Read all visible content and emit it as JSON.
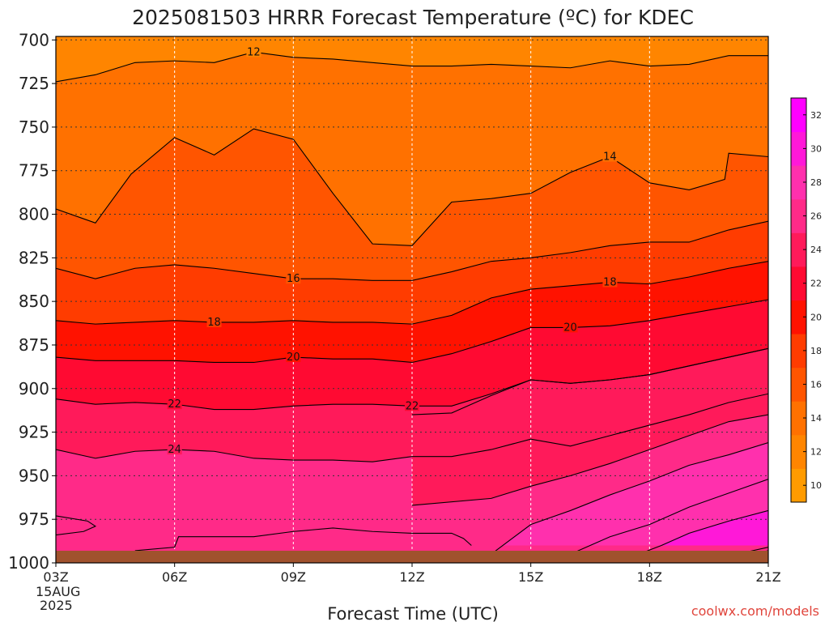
{
  "chart_data": {
    "type": "heatmap",
    "title": "2025081503 HRRR Forecast Temperature (ºC) for KDEC",
    "xlabel": "Forecast Time (UTC)",
    "ylabel": "",
    "x_ticks": [
      "03Z",
      "06Z",
      "09Z",
      "12Z",
      "15Z",
      "18Z",
      "21Z"
    ],
    "x_first_date": [
      "15AUG",
      "2025"
    ],
    "y_ticks": [
      "700",
      "725",
      "750",
      "775",
      "800",
      "825",
      "850",
      "875",
      "900",
      "925",
      "950",
      "975",
      "1000"
    ],
    "ylim": [
      1000,
      698
    ],
    "xlim_hours": [
      3,
      21
    ],
    "grid": true,
    "y_scale": "pressure (hPa), top = low pressure",
    "colorbar": {
      "ticks": [
        10,
        12,
        14,
        16,
        18,
        20,
        22,
        24,
        26,
        28,
        30,
        32
      ],
      "range": [
        9,
        33
      ],
      "colors": [
        "#ff9b00",
        "#ff8500",
        "#ff7100",
        "#ff5500",
        "#ff3c00",
        "#ff1200",
        "#ff0a32",
        "#ff1a5a",
        "#ff2a88",
        "#ff30ad",
        "#ff18d8",
        "#ff00ff"
      ]
    },
    "ground_layer_color": "#a0522d",
    "contours": [
      {
        "value": 12,
        "label": "12",
        "points": [
          [
            3,
            724
          ],
          [
            4,
            720
          ],
          [
            5,
            713
          ],
          [
            6,
            712
          ],
          [
            7,
            713
          ],
          [
            8,
            707
          ],
          [
            9,
            710
          ],
          [
            10,
            711
          ],
          [
            11,
            713
          ],
          [
            12,
            715
          ],
          [
            13,
            715
          ],
          [
            14,
            714
          ],
          [
            15,
            715
          ],
          [
            16,
            716
          ],
          [
            17,
            712
          ],
          [
            18,
            715
          ],
          [
            19,
            714
          ],
          [
            20,
            709
          ],
          [
            21,
            709
          ]
        ]
      },
      {
        "value": 14,
        "label": "14",
        "points": [
          [
            3,
            797
          ],
          [
            4,
            805
          ],
          [
            4.9,
            777
          ],
          [
            6,
            756
          ],
          [
            7,
            766
          ],
          [
            8,
            751
          ],
          [
            9,
            757
          ],
          [
            10,
            788
          ],
          [
            11,
            817
          ],
          [
            12,
            818
          ],
          [
            13,
            793
          ],
          [
            14,
            791
          ],
          [
            15,
            788
          ],
          [
            16,
            776
          ],
          [
            17,
            767
          ],
          [
            18,
            782
          ],
          [
            19,
            786
          ],
          [
            19.9,
            780
          ],
          [
            20,
            765
          ],
          [
            21,
            767
          ]
        ]
      },
      {
        "value": 16,
        "label": "16",
        "points": [
          [
            3,
            831
          ],
          [
            4,
            837
          ],
          [
            5,
            831
          ],
          [
            6,
            829
          ],
          [
            7,
            831
          ],
          [
            8,
            834
          ],
          [
            9,
            837
          ],
          [
            10,
            837
          ],
          [
            11,
            838
          ],
          [
            12,
            838
          ],
          [
            13,
            833
          ],
          [
            14,
            827
          ],
          [
            15,
            825
          ],
          [
            16,
            822
          ],
          [
            17,
            818
          ],
          [
            18,
            816
          ],
          [
            19,
            816
          ],
          [
            20,
            809
          ],
          [
            21,
            804
          ]
        ]
      },
      {
        "value": 18,
        "label": "18",
        "points": [
          [
            3,
            861
          ],
          [
            4,
            863
          ],
          [
            5,
            862
          ],
          [
            6,
            861
          ],
          [
            7,
            862
          ],
          [
            8,
            862
          ],
          [
            9,
            861
          ],
          [
            10,
            862
          ],
          [
            11,
            862
          ],
          [
            12,
            863
          ],
          [
            13,
            858
          ],
          [
            14,
            848
          ],
          [
            15,
            843
          ],
          [
            16,
            841
          ],
          [
            17,
            839
          ],
          [
            18,
            840
          ],
          [
            19,
            836
          ],
          [
            20,
            831
          ],
          [
            21,
            827
          ]
        ]
      },
      {
        "value": 20,
        "label": "20",
        "points": [
          [
            3,
            882
          ],
          [
            4,
            884
          ],
          [
            5,
            884
          ],
          [
            6,
            884
          ],
          [
            7,
            885
          ],
          [
            8,
            885
          ],
          [
            9,
            882
          ],
          [
            10,
            883
          ],
          [
            11,
            883
          ],
          [
            12,
            885
          ],
          [
            13,
            880
          ],
          [
            14,
            873
          ],
          [
            15,
            865
          ],
          [
            16,
            865
          ],
          [
            17,
            864
          ],
          [
            18,
            861
          ],
          [
            19,
            857
          ],
          [
            20,
            853
          ],
          [
            21,
            849
          ]
        ]
      },
      {
        "value": 22,
        "label": "22",
        "points": [
          [
            3,
            906
          ],
          [
            4,
            909
          ],
          [
            5,
            908
          ],
          [
            6,
            909
          ],
          [
            7,
            912
          ],
          [
            8,
            912
          ],
          [
            9,
            910
          ],
          [
            10,
            909
          ],
          [
            11,
            909
          ],
          [
            12,
            910
          ],
          [
            13,
            910
          ],
          [
            14,
            903
          ],
          [
            15,
            895
          ],
          [
            16,
            897
          ],
          [
            17,
            895
          ],
          [
            18,
            892
          ],
          [
            19,
            887
          ],
          [
            20,
            882
          ],
          [
            21,
            877
          ]
        ]
      },
      {
        "value": 23,
        "label": "",
        "points": [
          [
            12,
            915
          ],
          [
            13,
            914
          ],
          [
            14,
            904
          ],
          [
            15,
            895
          ],
          [
            16,
            897
          ],
          [
            17,
            895
          ],
          [
            18,
            892
          ],
          [
            19,
            887
          ],
          [
            20,
            882
          ],
          [
            21,
            877
          ]
        ]
      },
      {
        "value": 24,
        "label": "24",
        "points": [
          [
            3,
            935
          ],
          [
            4,
            940
          ],
          [
            5,
            936
          ],
          [
            6,
            935
          ],
          [
            7,
            936
          ],
          [
            8,
            940
          ],
          [
            9,
            941
          ],
          [
            10,
            941
          ],
          [
            11,
            942
          ],
          [
            12,
            939
          ],
          [
            13,
            939
          ],
          [
            14,
            935
          ],
          [
            15,
            929
          ],
          [
            16,
            933
          ],
          [
            17,
            927
          ],
          [
            18,
            921
          ],
          [
            19,
            915
          ],
          [
            20,
            908
          ],
          [
            21,
            903
          ]
        ]
      },
      {
        "value": 25,
        "label": "",
        "points": [
          [
            12,
            967
          ],
          [
            14,
            963
          ],
          [
            15,
            956
          ],
          [
            16,
            950
          ],
          [
            17,
            943
          ],
          [
            18,
            935
          ],
          [
            19,
            927
          ],
          [
            20,
            919
          ],
          [
            21,
            915
          ]
        ]
      },
      {
        "value": 26,
        "label": "",
        "points": [
          [
            14,
            995
          ],
          [
            15,
            978
          ],
          [
            16,
            970
          ],
          [
            17,
            961
          ],
          [
            18,
            953
          ],
          [
            19,
            944
          ],
          [
            20,
            938
          ],
          [
            21,
            931
          ]
        ]
      },
      {
        "value": 27,
        "label": "",
        "points": [
          [
            15.9,
            996
          ],
          [
            17,
            985
          ],
          [
            18,
            978
          ],
          [
            19,
            968
          ],
          [
            20,
            960
          ],
          [
            21,
            952
          ]
        ]
      },
      {
        "value": 28,
        "label": "",
        "points": [
          [
            17.5,
            997
          ],
          [
            18.3,
            990
          ],
          [
            19,
            983
          ],
          [
            20,
            976
          ],
          [
            21,
            970
          ]
        ]
      },
      {
        "value": 29,
        "label": "",
        "points": [
          [
            20,
            996
          ],
          [
            21,
            991
          ]
        ]
      },
      {
        "value": 30,
        "label": "",
        "points": [
          [
            19,
            1000
          ],
          [
            20,
            998
          ],
          [
            21,
            993
          ]
        ]
      },
      {
        "value": 25,
        "label": "",
        "points": [
          [
            3,
            973
          ],
          [
            3.8,
            976
          ],
          [
            4,
            979
          ],
          [
            3.7,
            982
          ],
          [
            3,
            984
          ]
        ]
      },
      {
        "value": 25,
        "label": "",
        "points": [
          [
            5,
            993
          ],
          [
            6,
            991
          ],
          [
            6.1,
            985
          ],
          [
            7,
            985
          ],
          [
            8,
            985
          ],
          [
            9,
            982
          ],
          [
            10,
            980
          ],
          [
            11,
            982
          ],
          [
            12,
            983
          ],
          [
            13,
            983
          ],
          [
            13.3,
            986
          ],
          [
            13.5,
            990
          ]
        ]
      }
    ]
  },
  "credit": "coolwx.com/models"
}
